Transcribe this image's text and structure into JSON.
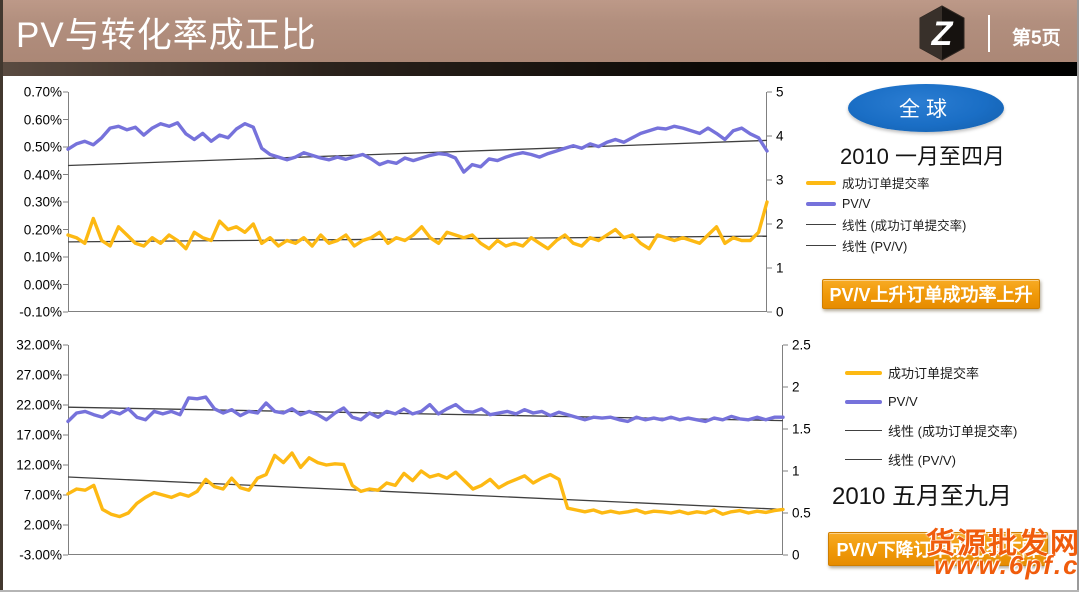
{
  "header": {
    "title": "PV与转化率成正比",
    "page_label": "第5页",
    "logo_letter": "Z"
  },
  "region_badge": "全球",
  "annotations": {
    "top_banner": "PV/V上升订单成功率上升",
    "bottom_banner": "PV/V下降订单成功率下降"
  },
  "watermark": {
    "line1": "货源批发网",
    "line2": "www.6pf.cn"
  },
  "colors": {
    "series_yellow": "#FDB913",
    "series_blue": "#7672DB",
    "trend_line": "#404040",
    "header_tan": "#B28F7E",
    "badge_blue": "#1A6EC5",
    "banner_orange": "#F09A0A",
    "watermark_orange": "#F05C0C"
  },
  "chart_data": [
    {
      "type": "line",
      "title": "2010 一月至四月",
      "left_axis": {
        "unit": "%",
        "min": -0.1,
        "max": 0.7,
        "ticks": [
          "0.70%",
          "0.60%",
          "0.50%",
          "0.40%",
          "0.30%",
          "0.20%",
          "0.10%",
          "0.00%",
          "-0.10%"
        ]
      },
      "right_axis": {
        "min": 0,
        "max": 5,
        "ticks": [
          "5",
          "4",
          "3",
          "2",
          "1",
          "0"
        ]
      },
      "legend": [
        {
          "label": "成功订单提交率",
          "kind": "series",
          "color": "#FDB913"
        },
        {
          "label": "PV/V",
          "kind": "series",
          "color": "#7672DB"
        },
        {
          "label": "线性 (成功订单提交率)",
          "kind": "trend",
          "color": "#404040"
        },
        {
          "label": "线性 (PV/V)",
          "kind": "trend",
          "color": "#404040"
        }
      ],
      "series": [
        {
          "name": "成功订单提交率",
          "axis": "left",
          "color": "#FDB913",
          "values": [
            0.18,
            0.17,
            0.15,
            0.24,
            0.16,
            0.14,
            0.21,
            0.18,
            0.15,
            0.14,
            0.17,
            0.15,
            0.18,
            0.16,
            0.13,
            0.19,
            0.17,
            0.16,
            0.23,
            0.2,
            0.21,
            0.19,
            0.22,
            0.15,
            0.17,
            0.14,
            0.16,
            0.15,
            0.17,
            0.14,
            0.18,
            0.15,
            0.16,
            0.18,
            0.14,
            0.16,
            0.17,
            0.19,
            0.15,
            0.17,
            0.16,
            0.18,
            0.21,
            0.17,
            0.15,
            0.19,
            0.18,
            0.17,
            0.18,
            0.15,
            0.13,
            0.16,
            0.14,
            0.15,
            0.14,
            0.17,
            0.15,
            0.13,
            0.16,
            0.18,
            0.15,
            0.14,
            0.17,
            0.16,
            0.18,
            0.2,
            0.17,
            0.18,
            0.15,
            0.13,
            0.18,
            0.17,
            0.16,
            0.17,
            0.16,
            0.15,
            0.18,
            0.21,
            0.15,
            0.17,
            0.16,
            0.16,
            0.19,
            0.3
          ]
        },
        {
          "name": "PV/V",
          "axis": "right",
          "color": "#7672DB",
          "values": [
            3.7,
            3.82,
            3.88,
            3.8,
            3.96,
            4.18,
            4.22,
            4.14,
            4.2,
            4.02,
            4.18,
            4.28,
            4.22,
            4.3,
            4.05,
            3.92,
            4.06,
            3.88,
            4.02,
            3.96,
            4.16,
            4.28,
            4.2,
            3.72,
            3.58,
            3.52,
            3.46,
            3.52,
            3.62,
            3.56,
            3.5,
            3.46,
            3.52,
            3.47,
            3.53,
            3.58,
            3.48,
            3.35,
            3.42,
            3.38,
            3.5,
            3.44,
            3.5,
            3.56,
            3.6,
            3.58,
            3.5,
            3.18,
            3.35,
            3.3,
            3.48,
            3.44,
            3.52,
            3.58,
            3.62,
            3.58,
            3.52,
            3.6,
            3.66,
            3.72,
            3.78,
            3.72,
            3.82,
            3.76,
            3.86,
            3.92,
            3.86,
            3.96,
            4.06,
            4.12,
            4.18,
            4.16,
            4.22,
            4.18,
            4.12,
            4.06,
            4.18,
            4.06,
            3.92,
            4.12,
            4.18,
            4.05,
            3.96,
            3.66
          ]
        }
      ],
      "trend_lines": [
        {
          "name": "线性 (成功订单提交率)",
          "axis": "left",
          "from": 0.155,
          "to": 0.176
        },
        {
          "name": "线性 (PV/V)",
          "axis": "right",
          "from": 3.33,
          "to": 3.9
        }
      ]
    },
    {
      "type": "line",
      "title": "2010 五月至九月",
      "left_axis": {
        "unit": "%",
        "min": -3.0,
        "max": 32.0,
        "ticks": [
          "32.00%",
          "27.00%",
          "22.00%",
          "17.00%",
          "12.00%",
          "7.00%",
          "2.00%",
          "-3.00%"
        ]
      },
      "right_axis": {
        "min": 0,
        "max": 2.5,
        "ticks": [
          "2.5",
          "2",
          "1.5",
          "1",
          "0.5",
          "0"
        ]
      },
      "legend": [
        {
          "label": "成功订单提交率",
          "kind": "series",
          "color": "#FDB913"
        },
        {
          "label": "PV/V",
          "kind": "series",
          "color": "#7672DB"
        },
        {
          "label": "线性 (成功订单提交率)",
          "kind": "trend",
          "color": "#404040"
        },
        {
          "label": "线性 (PV/V)",
          "kind": "trend",
          "color": "#404040"
        }
      ],
      "series": [
        {
          "name": "成功订单提交率",
          "axis": "left",
          "color": "#FDB913",
          "values": [
            7.2,
            8.0,
            7.8,
            8.6,
            4.6,
            3.8,
            3.4,
            4.0,
            5.6,
            6.6,
            7.4,
            7.0,
            6.6,
            7.2,
            6.8,
            7.6,
            9.6,
            8.4,
            8.0,
            9.8,
            8.2,
            7.8,
            9.8,
            10.4,
            13.6,
            12.4,
            14.0,
            11.6,
            13.2,
            12.4,
            12.0,
            12.2,
            12.1,
            8.6,
            7.6,
            8.0,
            7.8,
            9.0,
            8.6,
            10.6,
            9.4,
            11.0,
            10.0,
            10.4,
            9.8,
            10.8,
            9.4,
            8.0,
            8.6,
            9.6,
            8.2,
            9.0,
            9.6,
            10.2,
            9.0,
            9.8,
            10.4,
            9.6,
            4.8,
            4.5,
            4.2,
            4.5,
            4.0,
            4.3,
            4.0,
            4.2,
            4.5,
            4.0,
            4.3,
            4.2,
            4.0,
            4.3,
            3.9,
            4.2,
            4.0,
            4.5,
            3.8,
            4.2,
            4.4,
            4.0,
            4.3,
            4.1,
            4.4,
            4.6
          ]
        },
        {
          "name": "PV/V",
          "axis": "right",
          "color": "#7672DB",
          "values": [
            1.59,
            1.69,
            1.71,
            1.67,
            1.64,
            1.71,
            1.68,
            1.74,
            1.64,
            1.61,
            1.71,
            1.68,
            1.71,
            1.67,
            1.87,
            1.86,
            1.88,
            1.74,
            1.69,
            1.73,
            1.66,
            1.71,
            1.69,
            1.81,
            1.71,
            1.69,
            1.74,
            1.67,
            1.71,
            1.67,
            1.61,
            1.69,
            1.75,
            1.64,
            1.61,
            1.69,
            1.64,
            1.71,
            1.68,
            1.74,
            1.68,
            1.71,
            1.79,
            1.68,
            1.74,
            1.79,
            1.71,
            1.7,
            1.74,
            1.67,
            1.69,
            1.71,
            1.68,
            1.73,
            1.69,
            1.71,
            1.66,
            1.7,
            1.67,
            1.64,
            1.61,
            1.64,
            1.63,
            1.64,
            1.61,
            1.59,
            1.64,
            1.61,
            1.63,
            1.61,
            1.64,
            1.61,
            1.63,
            1.61,
            1.59,
            1.63,
            1.61,
            1.65,
            1.62,
            1.61,
            1.64,
            1.61,
            1.64,
            1.64
          ]
        }
      ],
      "trend_lines": [
        {
          "name": "线性 (成功订单提交率)",
          "axis": "left",
          "from": 10.0,
          "to": 4.6
        },
        {
          "name": "线性 (PV/V)",
          "axis": "right",
          "from": 1.76,
          "to": 1.6
        }
      ]
    }
  ]
}
